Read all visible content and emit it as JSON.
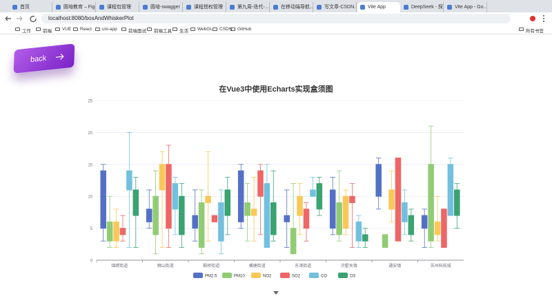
{
  "browser": {
    "tabs": [
      "首页",
      "圆培教育 – Fig...",
      "课程包管理",
      "圆培-swagger",
      "课程授权管理",
      "第九周-迭代-...",
      "在移动端导航...",
      "写文章-CSDN...",
      "Vite App",
      "DeepSeek - 探...",
      "Vite App - Go..."
    ],
    "active_tab": 8,
    "address": "localhost:8080/boxAndWhiskerPlot",
    "bookmarks": [
      "工作",
      "前端",
      "VUE",
      "React",
      "uni-app",
      "前端面试",
      "前端工具",
      "生活",
      "WebGL",
      "CSDN",
      "GitHub"
    ],
    "all_bookmarks": "所有书签"
  },
  "page": {
    "back_label": "back"
  },
  "chart_data": {
    "type": "boxplot",
    "title": "在Vue3中使用Echarts实现盒须图",
    "categories": [
      "锦绣街道",
      "狮山街道",
      "枫桥街道",
      "横塘街道",
      "东渚街道",
      "浒墅关镇",
      "通安镇",
      "苏州科技城"
    ],
    "series": [
      {
        "name": "PM2.5",
        "color": "#5470c6",
        "values": [
          [
            3,
            5,
            8,
            14,
            15
          ],
          [
            5,
            6,
            7,
            8,
            11
          ],
          [
            3,
            5,
            6,
            7,
            11
          ],
          [
            5,
            6,
            10,
            14,
            15
          ],
          [
            2,
            6,
            6.5,
            7,
            11
          ],
          [
            4,
            5,
            8,
            11,
            13
          ],
          [
            8,
            10,
            12,
            15,
            16
          ],
          [
            2,
            5,
            6,
            7,
            8
          ]
        ]
      },
      {
        "name": "PM10",
        "color": "#91cc75",
        "values": [
          [
            2,
            3,
            4,
            6,
            10
          ],
          [
            1,
            4,
            7,
            10,
            14
          ],
          [
            1,
            2,
            7,
            9,
            11
          ],
          [
            3,
            7,
            8,
            9,
            12
          ],
          [
            1,
            1,
            3,
            5,
            12
          ],
          [
            3,
            4,
            7,
            9,
            14
          ],
          [
            2,
            2,
            3,
            4,
            4
          ],
          [
            2,
            3,
            9,
            15,
            21
          ]
        ]
      },
      {
        "name": "NO2",
        "color": "#fac858",
        "values": [
          [
            2,
            3,
            5,
            6,
            8
          ],
          [
            2,
            11,
            14,
            15,
            17
          ],
          [
            3,
            9,
            9.5,
            10,
            17
          ],
          [
            3,
            7,
            7.5,
            8,
            13
          ],
          [
            4,
            7,
            8,
            10,
            12
          ],
          [
            4,
            5,
            8,
            10,
            11
          ],
          [
            6,
            8,
            9,
            11,
            14
          ],
          [
            3,
            4,
            5,
            6,
            10
          ]
        ]
      },
      {
        "name": "SO2",
        "color": "#ee6666",
        "values": [
          [
            3,
            4,
            4.5,
            5,
            7
          ],
          [
            2,
            5,
            9,
            15,
            18
          ],
          [
            6,
            6,
            6.5,
            7,
            7
          ],
          [
            4,
            10,
            12,
            14,
            15
          ],
          [
            3,
            5,
            6,
            8,
            9
          ],
          [
            2,
            9,
            9.5,
            10,
            12
          ],
          [
            3,
            3,
            9,
            16,
            16
          ],
          [
            2,
            2,
            5,
            8,
            8
          ]
        ]
      },
      {
        "name": "CO",
        "color": "#73c0de",
        "values": [
          [
            2,
            11,
            12,
            14,
            20
          ],
          [
            4,
            8,
            10,
            12,
            13
          ],
          [
            1,
            3,
            5,
            9,
            11
          ],
          [
            2,
            2,
            7,
            12,
            15
          ],
          [
            10,
            10,
            10.5,
            11,
            13
          ],
          [
            2,
            3,
            4,
            6,
            7
          ],
          [
            4,
            6,
            8,
            9,
            11
          ],
          [
            7,
            7,
            11,
            15,
            16
          ]
        ]
      },
      {
        "name": "O3",
        "color": "#3ba272",
        "values": [
          [
            2,
            7,
            9,
            11,
            13
          ],
          [
            2,
            4,
            6,
            10,
            12
          ],
          [
            4,
            7,
            9,
            11,
            13
          ],
          [
            3,
            4,
            6,
            9,
            14
          ],
          [
            7,
            8,
            10,
            12,
            13
          ],
          [
            2,
            3,
            3.5,
            4,
            5
          ],
          [
            3,
            4,
            5,
            7,
            8
          ],
          [
            5,
            7,
            9,
            11,
            12
          ]
        ]
      }
    ],
    "ylim": [
      0,
      25
    ],
    "yticks": [
      0,
      5,
      10,
      15,
      20,
      25
    ],
    "grid": true,
    "legend": "bottom"
  }
}
